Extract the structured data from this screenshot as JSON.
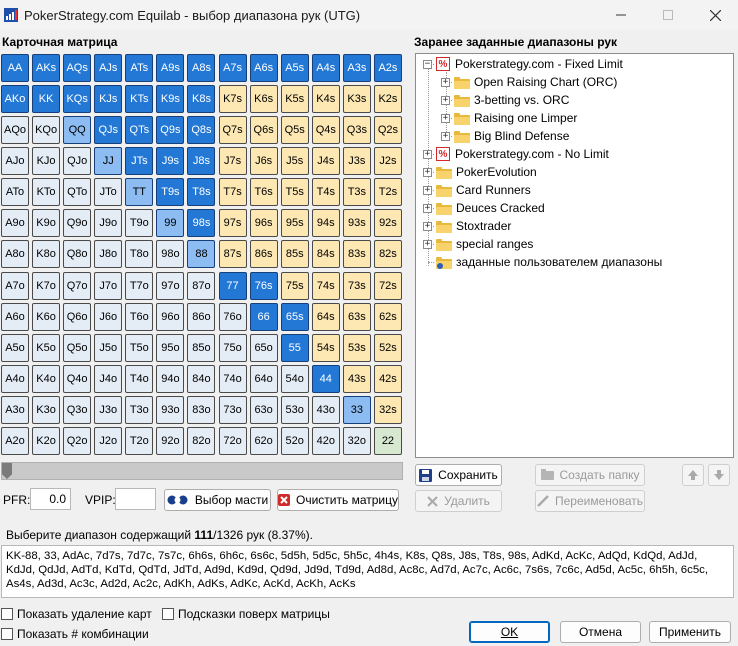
{
  "window": {
    "title": "PokerStrategy.com Equilab - выбор диапазона рук (UTG)"
  },
  "matrix_label": "Карточная матрица",
  "presets_label": "Заранее заданные диапазоны рук",
  "matrix": [
    [
      "AA",
      "AKs",
      "AQs",
      "AJs",
      "ATs",
      "A9s",
      "A8s",
      "A7s",
      "A6s",
      "A5s",
      "A4s",
      "A3s",
      "A2s"
    ],
    [
      "AKo",
      "KK",
      "KQs",
      "KJs",
      "KTs",
      "K9s",
      "K8s",
      "K7s",
      "K6s",
      "K5s",
      "K4s",
      "K3s",
      "K2s"
    ],
    [
      "AQo",
      "KQo",
      "QQ",
      "QJs",
      "QTs",
      "Q9s",
      "Q8s",
      "Q7s",
      "Q6s",
      "Q5s",
      "Q4s",
      "Q3s",
      "Q2s"
    ],
    [
      "AJo",
      "KJo",
      "QJo",
      "JJ",
      "JTs",
      "J9s",
      "J8s",
      "J7s",
      "J6s",
      "J5s",
      "J4s",
      "J3s",
      "J2s"
    ],
    [
      "ATo",
      "KTo",
      "QTo",
      "JTo",
      "TT",
      "T9s",
      "T8s",
      "T7s",
      "T6s",
      "T5s",
      "T4s",
      "T3s",
      "T2s"
    ],
    [
      "A9o",
      "K9o",
      "Q9o",
      "J9o",
      "T9o",
      "99",
      "98s",
      "97s",
      "96s",
      "95s",
      "94s",
      "93s",
      "92s"
    ],
    [
      "A8o",
      "K8o",
      "Q8o",
      "J8o",
      "T8o",
      "98o",
      "88",
      "87s",
      "86s",
      "85s",
      "84s",
      "83s",
      "82s"
    ],
    [
      "A7o",
      "K7o",
      "Q7o",
      "J7o",
      "T7o",
      "97o",
      "87o",
      "77",
      "76s",
      "75s",
      "74s",
      "73s",
      "72s"
    ],
    [
      "A6o",
      "K6o",
      "Q6o",
      "J6o",
      "T6o",
      "96o",
      "86o",
      "76o",
      "66",
      "65s",
      "64s",
      "63s",
      "62s"
    ],
    [
      "A5o",
      "K5o",
      "Q5o",
      "J5o",
      "T5o",
      "95o",
      "85o",
      "75o",
      "65o",
      "55",
      "54s",
      "53s",
      "52s"
    ],
    [
      "A4o",
      "K4o",
      "Q4o",
      "J4o",
      "T4o",
      "94o",
      "84o",
      "74o",
      "64o",
      "54o",
      "44",
      "43s",
      "42s"
    ],
    [
      "A3o",
      "K3o",
      "Q3o",
      "J3o",
      "T3o",
      "93o",
      "83o",
      "73o",
      "63o",
      "53o",
      "43o",
      "33",
      "32s"
    ],
    [
      "A2o",
      "K2o",
      "Q2o",
      "J2o",
      "T2o",
      "92o",
      "82o",
      "72o",
      "62o",
      "52o",
      "42o",
      "32o",
      "22"
    ]
  ],
  "selected": [
    "AA",
    "AKs",
    "AQs",
    "AJs",
    "ATs",
    "A9s",
    "A8s",
    "A7s",
    "A6s",
    "A5s",
    "A4s",
    "A3s",
    "A2s",
    "AKo",
    "KK",
    "KQs",
    "KJs",
    "KTs",
    "K9s",
    "K8s",
    "QQ",
    "QJs",
    "QTs",
    "Q9s",
    "Q8s",
    "JJ",
    "JTs",
    "J9s",
    "J8s",
    "TT",
    "T9s",
    "T8s",
    "99",
    "98s",
    "88",
    "77",
    "76s",
    "66",
    "65s",
    "55",
    "44",
    "33"
  ],
  "selected_light": [
    "QQ",
    "JJ",
    "TT",
    "99",
    "88",
    "33"
  ],
  "tree": [
    {
      "label": "Pokerstrategy.com - Fixed Limit",
      "icon": "ps-icon",
      "level": 0,
      "expander": "−"
    },
    {
      "label": "Open Raising Chart (ORC)",
      "icon": "folder-icon",
      "level": 1,
      "expander": "+"
    },
    {
      "label": "3-betting vs. ORC",
      "icon": "folder-icon",
      "level": 1,
      "expander": "+"
    },
    {
      "label": "Raising one Limper",
      "icon": "folder-icon",
      "level": 1,
      "expander": "+"
    },
    {
      "label": "Big Blind Defense",
      "icon": "folder-icon",
      "level": 1,
      "expander": "+"
    },
    {
      "label": "Pokerstrategy.com - No Limit",
      "icon": "ps-icon",
      "level": 0,
      "expander": "+"
    },
    {
      "label": "PokerEvolution",
      "icon": "folder-icon",
      "level": 0,
      "expander": "+"
    },
    {
      "label": "Card Runners",
      "icon": "folder-icon",
      "level": 0,
      "expander": "+"
    },
    {
      "label": "Deuces Cracked",
      "icon": "folder-icon",
      "level": 0,
      "expander": "+"
    },
    {
      "label": "Stoxtrader",
      "icon": "folder-icon",
      "level": 0,
      "expander": "+"
    },
    {
      "label": "special ranges",
      "icon": "folder-icon",
      "level": 0,
      "expander": "+"
    },
    {
      "label": "заданные пользователем диапазоны",
      "icon": "user-folder-icon",
      "level": 0,
      "expander": ""
    }
  ],
  "buttons": {
    "save": "Сохранить",
    "create_folder": "Создать папку",
    "delete": "Удалить",
    "rename": "Переименовать",
    "suit_select": "Выбор масти",
    "clear_matrix": "Очистить матрицу",
    "ok": "OK",
    "cancel": "Отмена",
    "apply": "Применить"
  },
  "stats": {
    "pfr_label": "PFR:",
    "pfr_value": "0.0",
    "vpip_label": "VPIP:",
    "vpip_value": ""
  },
  "description": {
    "prefix": "Выберите диапазон содержащий ",
    "count": "111",
    "suffix": "/1326 рук (8.37%)."
  },
  "hand_range": "KK-88, 33, AdAc, 7d7s, 7d7c, 7s7c, 6h6s, 6h6c, 6s6c, 5d5h, 5d5c, 5h5c, 4h4s, K8s, Q8s, J8s, T8s, 98s, AdKd, AcKc, AdQd, KdQd, AdJd, KdJd, QdJd, AdTd, KdTd, QdTd, JdTd, Ad9d, Kd9d, Qd9d, Jd9d, Td9d, Ad8d, Ac8c, Ad7d, Ac7c, Ac6c, 7s6s, 7c6c, Ad5d, Ac5c, 6h5h, 6c5c, As4s, Ad3d, Ac3c, Ad2d, Ac2c, AdKh, AdKs, AdKc, AcKd, AcKh, AcKs",
  "checkboxes": {
    "show_card_removal": "Показать удаление карт",
    "show_tips": "Подсказки поверх матрицы",
    "show_combos": "Показать # комбинации"
  },
  "colors": {
    "selected": "#2378d6",
    "selected_light": "#8cbcf2",
    "suited": "#fde8b4",
    "offsuit": "#e4edf6",
    "pair": "#d6e8cf"
  }
}
